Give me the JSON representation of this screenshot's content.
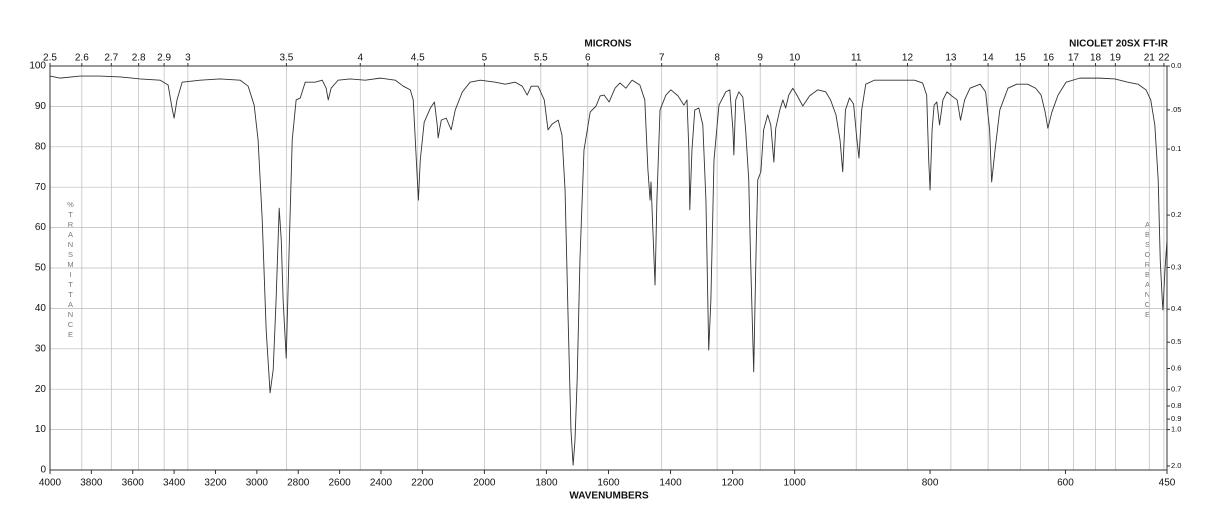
{
  "chart_data": {
    "type": "line",
    "title": "NICOLET 20SX FT-IR",
    "x_label": "WAVENUMBERS",
    "x2_label": "MICRONS",
    "y_label": "%TRANSMITTANCE",
    "y2_label": "ABSORBANCE",
    "color": "#333333",
    "grid": true,
    "xlim": [
      4000,
      450
    ],
    "x_breaks": [
      2200,
      1000
    ],
    "xticks": [
      4000,
      3800,
      3600,
      3400,
      3200,
      3000,
      2800,
      2600,
      2400,
      2200,
      2000,
      1800,
      1600,
      1400,
      1200,
      1000,
      800,
      600,
      450
    ],
    "x2_scale": "microns",
    "x2ticks": [
      2.5,
      2.6,
      2.7,
      2.8,
      2.9,
      3,
      3.5,
      4,
      4.5,
      5,
      5.5,
      6,
      7,
      8,
      9,
      10,
      11,
      12,
      13,
      14,
      15,
      16,
      17,
      18,
      19,
      21,
      22
    ],
    "ylim": [
      0,
      100
    ],
    "yticks": [
      0,
      10,
      20,
      30,
      40,
      50,
      60,
      70,
      80,
      90,
      100
    ],
    "y2_scale": "absorbance",
    "y2ticks": [
      {
        "value": 0,
        "label": "0.0"
      },
      {
        "value": 0.05,
        "label": ".05"
      },
      0.1,
      0.2,
      0.3,
      0.4,
      0.5,
      0.6,
      0.7,
      0.8,
      0.9,
      {
        "value": 1,
        "label": "1.0"
      },
      {
        "value": 2,
        "label": "2.0"
      }
    ],
    "x": [
      4000,
      3952,
      3855,
      3758,
      3661,
      3565,
      3468,
      3429,
      3410,
      3400,
      3386,
      3361,
      3274,
      3178,
      3081,
      3042,
      3013,
      2994,
      2974,
      2955,
      2936,
      2921,
      2907,
      2892,
      2882,
      2873,
      2858,
      2844,
      2829,
      2810,
      2790,
      2766,
      2718,
      2684,
      2665,
      2655,
      2641,
      2607,
      2549,
      2476,
      2403,
      2331,
      2292,
      2258,
      2244,
      2229,
      2219,
      2210,
      2194,
      2174,
      2161,
      2152,
      2149,
      2139,
      2123,
      2107,
      2094,
      2071,
      2046,
      2013,
      1965,
      1933,
      1901,
      1878,
      1862,
      1849,
      1827,
      1807,
      1795,
      1782,
      1762,
      1750,
      1740,
      1730,
      1721,
      1714,
      1708,
      1701,
      1692,
      1679,
      1659,
      1640,
      1627,
      1614,
      1598,
      1579,
      1563,
      1544,
      1524,
      1499,
      1483,
      1473,
      1466,
      1463,
      1457,
      1450,
      1444,
      1434,
      1415,
      1399,
      1376,
      1357,
      1347,
      1341,
      1338,
      1331,
      1322,
      1309,
      1296,
      1286,
      1277,
      1270,
      1260,
      1244,
      1222,
      1209,
      1199,
      1196,
      1190,
      1180,
      1167,
      1158,
      1148,
      1142,
      1132,
      1125,
      1119,
      1109,
      1100,
      1087,
      1077,
      1067,
      1061,
      1048,
      1038,
      1029,
      1019,
      1006,
      996,
      988,
      978,
      966,
      954,
      947,
      939,
      933,
      929,
      925,
      919,
      913,
      908,
      905,
      901,
      895,
      882,
      852,
      823,
      811,
      805,
      802,
      800,
      797,
      794,
      790,
      786,
      781,
      775,
      768,
      760,
      755,
      749,
      741,
      726,
      718,
      712,
      709,
      704,
      697,
      685,
      672,
      656,
      644,
      636,
      630,
      626,
      620,
      611,
      599,
      579,
      549,
      527,
      508,
      493,
      481,
      474,
      468,
      463,
      460,
      457,
      456,
      453,
      450
    ],
    "values": [
      97.5,
      97.0,
      97.5,
      97.5,
      97.3,
      96.8,
      96.5,
      95.3,
      89.6,
      87.1,
      91.6,
      96.0,
      96.5,
      96.8,
      96.5,
      95.0,
      90.3,
      81.7,
      61.9,
      34.7,
      19.1,
      24.8,
      42.1,
      64.8,
      56.9,
      42.1,
      27.7,
      54.5,
      81.7,
      91.6,
      92.1,
      96.0,
      96.0,
      96.5,
      94.5,
      91.6,
      94.5,
      96.5,
      96.8,
      96.5,
      97.0,
      96.5,
      95.0,
      94.1,
      91.6,
      76.7,
      66.8,
      76.7,
      86.1,
      89.6,
      91.1,
      85.4,
      82.2,
      86.6,
      87.1,
      84.2,
      89.1,
      93.6,
      96.0,
      96.5,
      96.0,
      95.5,
      96.0,
      95.0,
      92.8,
      95.0,
      95.0,
      91.6,
      84.2,
      85.6,
      86.6,
      82.9,
      69.3,
      37.1,
      9.9,
      1.2,
      7.4,
      22.3,
      52.0,
      79.2,
      88.6,
      90.1,
      92.6,
      92.8,
      91.1,
      94.5,
      95.8,
      94.5,
      96.5,
      95.3,
      91.6,
      74.3,
      66.8,
      71.3,
      59.4,
      45.8,
      66.8,
      89.1,
      92.8,
      94.1,
      92.6,
      90.3,
      91.6,
      79.2,
      64.4,
      79.2,
      89.1,
      89.6,
      85.4,
      66.8,
      29.7,
      42.1,
      76.7,
      90.3,
      93.6,
      94.1,
      84.2,
      78.0,
      91.6,
      93.6,
      92.3,
      84.2,
      71.8,
      52.0,
      24.3,
      52.0,
      71.8,
      73.8,
      84.2,
      87.9,
      85.4,
      76.2,
      84.6,
      89.1,
      91.6,
      89.6,
      92.8,
      94.5,
      92.6,
      90.1,
      92.6,
      94.1,
      93.6,
      91.6,
      87.9,
      81.7,
      73.8,
      89.1,
      92.1,
      90.6,
      81.7,
      77.2,
      89.1,
      95.5,
      96.5,
      96.5,
      96.5,
      95.8,
      92.8,
      76.7,
      69.3,
      84.2,
      90.3,
      91.1,
      85.4,
      91.6,
      93.6,
      92.6,
      91.6,
      86.6,
      91.6,
      94.5,
      95.5,
      93.6,
      84.2,
      71.3,
      79.2,
      89.1,
      94.5,
      95.5,
      95.5,
      94.5,
      92.8,
      88.6,
      84.6,
      88.6,
      92.8,
      96.0,
      97.0,
      97.0,
      96.8,
      96.0,
      95.5,
      94.1,
      91.6,
      85.4,
      71.8,
      52.0,
      42.1,
      39.6,
      49.5,
      56.9
    ]
  }
}
